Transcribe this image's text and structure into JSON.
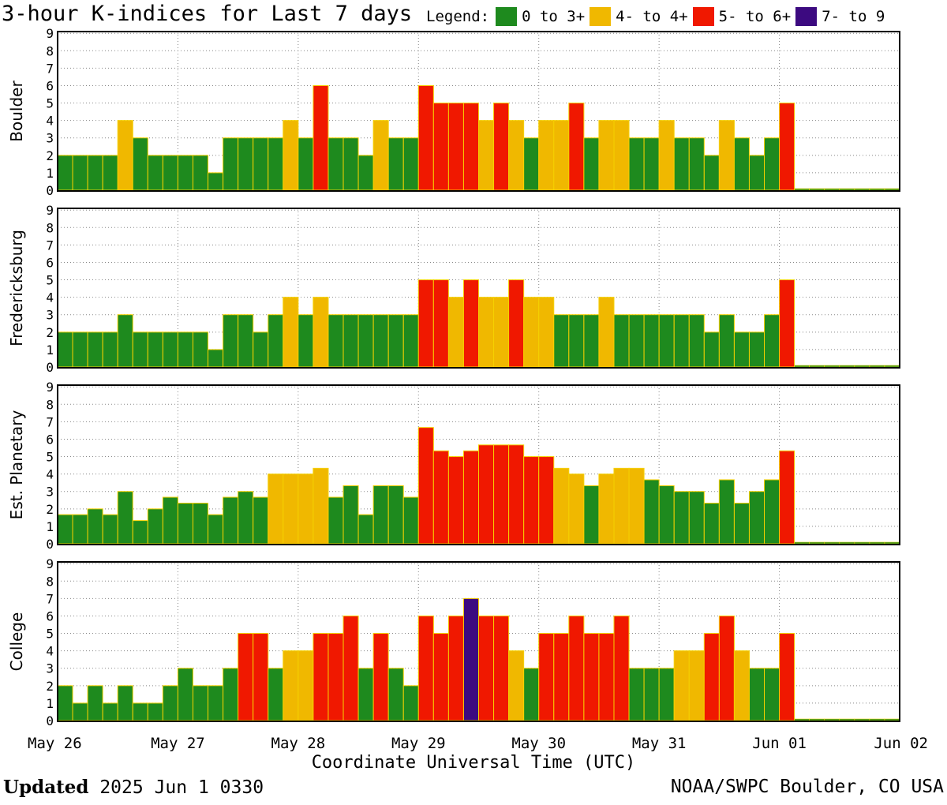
{
  "title": "3-hour K-indices for Last 7 days",
  "legend": {
    "label": "Legend:",
    "items": [
      {
        "label": "0 to 3+",
        "color": "#1e8a1e"
      },
      {
        "label": "4- to 4+",
        "color": "#f0b800"
      },
      {
        "label": "5- to 6+",
        "color": "#f01800"
      },
      {
        "label": "7- to 9",
        "color": "#3c0a80"
      }
    ]
  },
  "footer": {
    "updated_label": "Updated",
    "updated_value": "2025 Jun  1 0330",
    "credit": "NOAA/SWPC Boulder, CO USA"
  },
  "chart_data": {
    "type": "bar",
    "xlabel": "Coordinate Universal Time (UTC)",
    "x_ticks": [
      "May 26",
      "May 27",
      "May 28",
      "May 29",
      "May 30",
      "May 31",
      "Jun 01",
      "Jun 02"
    ],
    "ylim": [
      0,
      9
    ],
    "y_ticks": [
      0,
      1,
      2,
      3,
      4,
      5,
      6,
      7,
      8,
      9
    ],
    "bins_per_day": 8,
    "grid": true,
    "panels": [
      {
        "name": "Boulder",
        "values": [
          2,
          2,
          2,
          2,
          4,
          3,
          2,
          2,
          2,
          2,
          1,
          3,
          3,
          3,
          3,
          4,
          3,
          6,
          3,
          3,
          2,
          4,
          3,
          3,
          6,
          5,
          5,
          5,
          4,
          5,
          4,
          3,
          4,
          4,
          5,
          3,
          4,
          4,
          3,
          3,
          4,
          3,
          3,
          2,
          4,
          3,
          2,
          3,
          5
        ]
      },
      {
        "name": "Fredericksburg",
        "values": [
          2,
          2,
          2,
          2,
          3,
          2,
          2,
          2,
          2,
          2,
          1,
          3,
          3,
          2,
          3,
          4,
          3,
          4,
          3,
          3,
          3,
          3,
          3,
          3,
          5,
          5,
          4,
          5,
          4,
          4,
          5,
          4,
          4,
          3,
          3,
          3,
          4,
          3,
          3,
          3,
          3,
          3,
          3,
          2,
          3,
          2,
          2,
          3,
          5
        ]
      },
      {
        "name": "Est. Planetary",
        "values": [
          1.67,
          1.67,
          2,
          1.67,
          3,
          1.33,
          2,
          2.67,
          2.33,
          2.33,
          1.67,
          2.67,
          3,
          2.67,
          4,
          4,
          4,
          4.33,
          2.67,
          3.33,
          1.67,
          3.33,
          3.33,
          2.67,
          6.67,
          5.33,
          5,
          5.33,
          5.67,
          5.67,
          5.67,
          5,
          5,
          4.33,
          4,
          3.33,
          4,
          4.33,
          4.33,
          3.67,
          3.33,
          3,
          3,
          2.33,
          3.67,
          2.33,
          3,
          3.67,
          5.33
        ]
      },
      {
        "name": "College",
        "values": [
          2,
          1,
          2,
          1,
          2,
          1,
          1,
          2,
          3,
          2,
          2,
          3,
          5,
          5,
          3,
          4,
          4,
          5,
          5,
          6,
          3,
          5,
          3,
          2,
          6,
          5,
          6,
          7,
          6,
          6,
          4,
          3,
          5,
          5,
          6,
          5,
          5,
          6,
          3,
          3,
          3,
          4,
          4,
          5,
          6,
          4,
          3,
          3,
          5
        ]
      }
    ]
  }
}
